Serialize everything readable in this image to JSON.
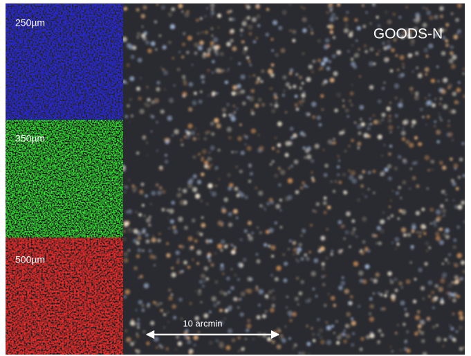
{
  "panels": [
    {
      "label": "250µm"
    },
    {
      "label": "350µm"
    },
    {
      "label": "500µm"
    }
  ],
  "main": {
    "title": "GOODS-N",
    "scale_bar": "10 arcmin"
  }
}
